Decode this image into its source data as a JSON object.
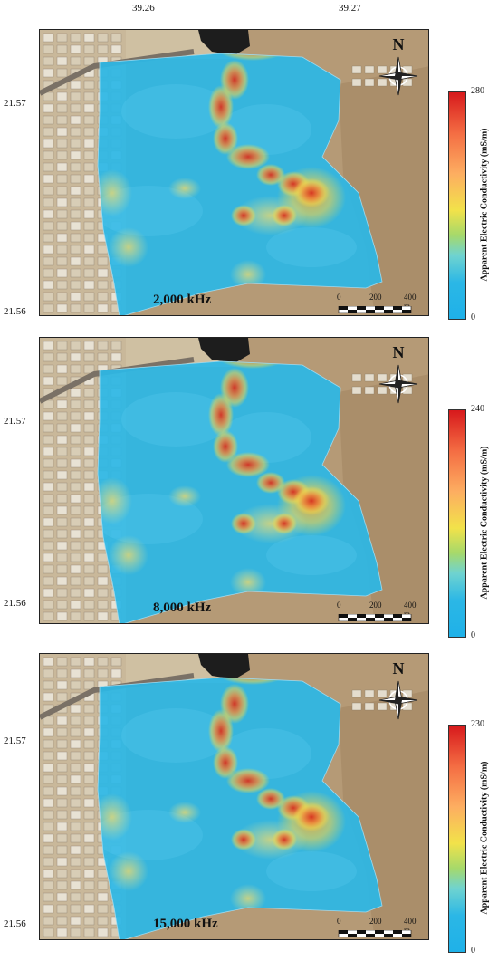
{
  "longitude_labels": [
    "39.26",
    "39.27"
  ],
  "latitude_labels": {
    "upper": "21.57",
    "lower": "21.56"
  },
  "north_label": "N",
  "scale_bar": {
    "zero": "0",
    "mid": "200",
    "end": "400 m"
  },
  "colorbar": {
    "title": "Apparent Electric Conductivity (mS/m)",
    "gradient_colors": [
      "#d7191c",
      "#fdae61",
      "#f2e24a",
      "#6fd3d0",
      "#1fb1e8"
    ]
  },
  "panels": [
    {
      "frequency": "2,000 kHz",
      "max": "280",
      "min": "0"
    },
    {
      "frequency": "8,000 kHz",
      "max": "240",
      "min": "0"
    },
    {
      "frequency": "15,000 kHz",
      "max": "230",
      "min": "0"
    }
  ],
  "colors": {
    "low": "#2bb7e6",
    "mid": "#f2d24a",
    "high": "#e2452a",
    "satellite_terrain": "#b59a76"
  }
}
